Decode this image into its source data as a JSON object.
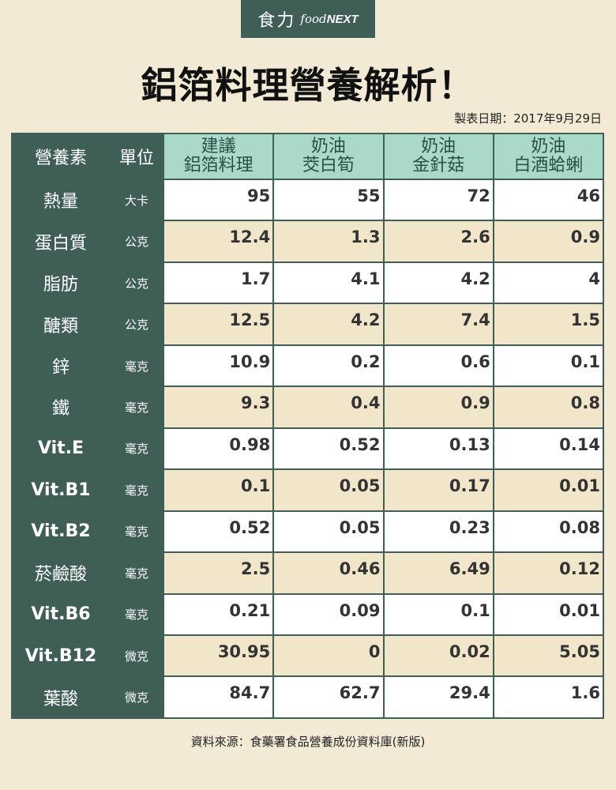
{
  "brand": {
    "zh": "食力",
    "en_prefix": "food",
    "en_suffix": "NEXT"
  },
  "colors": {
    "header_dark": "#3f5e55",
    "header_light": "#a9d9c9",
    "row_alt": "#f1e6c9",
    "background": "#f3ead6"
  },
  "chart_data": {
    "type": "table",
    "title": "鋁箔料理營養解析！",
    "date_note": "製表日期：2017年9月29日",
    "source": "資料來源：食藥署食品營養成份資料庫(新版)",
    "header": {
      "nutrient": "營養素",
      "unit": "單位",
      "foods": [
        {
          "line1": "建議",
          "line2": "鋁箔料理"
        },
        {
          "line1": "奶油",
          "line2": "茭白筍"
        },
        {
          "line1": "奶油",
          "line2": "金針菇"
        },
        {
          "line1": "奶油",
          "line2": "白酒蛤蜊"
        }
      ]
    },
    "rows": [
      {
        "name": "熱量",
        "unit": "大卡",
        "values": [
          "95",
          "55",
          "72",
          "46"
        ]
      },
      {
        "name": "蛋白質",
        "unit": "公克",
        "values": [
          "12.4",
          "1.3",
          "2.6",
          "0.9"
        ]
      },
      {
        "name": "脂肪",
        "unit": "公克",
        "values": [
          "1.7",
          "4.1",
          "4.2",
          "4"
        ]
      },
      {
        "name": "醣類",
        "unit": "公克",
        "values": [
          "12.5",
          "4.2",
          "7.4",
          "1.5"
        ]
      },
      {
        "name": "鋅",
        "unit": "毫克",
        "values": [
          "10.9",
          "0.2",
          "0.6",
          "0.1"
        ]
      },
      {
        "name": "鐵",
        "unit": "毫克",
        "values": [
          "9.3",
          "0.4",
          "0.9",
          "0.8"
        ]
      },
      {
        "name": "Vit.E",
        "unit": "毫克",
        "values": [
          "0.98",
          "0.52",
          "0.13",
          "0.14"
        ]
      },
      {
        "name": "Vit.B1",
        "unit": "毫克",
        "values": [
          "0.1",
          "0.05",
          "0.17",
          "0.01"
        ]
      },
      {
        "name": "Vit.B2",
        "unit": "毫克",
        "values": [
          "0.52",
          "0.05",
          "0.23",
          "0.08"
        ]
      },
      {
        "name": "菸鹼酸",
        "unit": "毫克",
        "values": [
          "2.5",
          "0.46",
          "6.49",
          "0.12"
        ]
      },
      {
        "name": "Vit.B6",
        "unit": "毫克",
        "values": [
          "0.21",
          "0.09",
          "0.1",
          "0.01"
        ]
      },
      {
        "name": "Vit.B12",
        "unit": "微克",
        "values": [
          "30.95",
          "0",
          "0.02",
          "5.05"
        ]
      },
      {
        "name": "葉酸",
        "unit": "微克",
        "values": [
          "84.7",
          "62.7",
          "29.4",
          "1.6"
        ]
      }
    ]
  }
}
